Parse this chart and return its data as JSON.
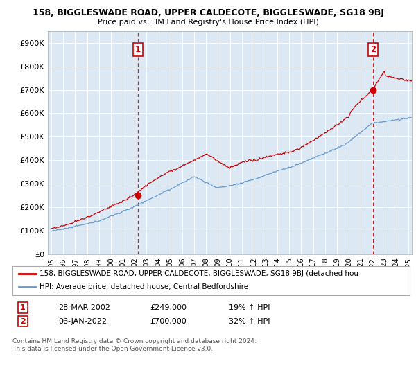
{
  "title": "158, BIGGLESWADE ROAD, UPPER CALDECOTE, BIGGLESWADE, SG18 9BJ",
  "subtitle": "Price paid vs. HM Land Registry's House Price Index (HPI)",
  "footer": "Contains HM Land Registry data © Crown copyright and database right 2024.\nThis data is licensed under the Open Government Licence v3.0.",
  "legend_line1": "158, BIGGLESWADE ROAD, UPPER CALDECOTE, BIGGLESWADE, SG18 9BJ (detached hou",
  "legend_line2": "HPI: Average price, detached house, Central Bedfordshire",
  "annotation1_date": "28-MAR-2002",
  "annotation1_price": "£249,000",
  "annotation1_hpi": "19% ↑ HPI",
  "annotation2_date": "06-JAN-2022",
  "annotation2_price": "£700,000",
  "annotation2_hpi": "32% ↑ HPI",
  "ylim": [
    0,
    950000
  ],
  "yticks": [
    0,
    100000,
    200000,
    300000,
    400000,
    500000,
    600000,
    700000,
    800000,
    900000
  ],
  "ytick_labels": [
    "£0",
    "£100K",
    "£200K",
    "£300K",
    "£400K",
    "£500K",
    "£600K",
    "£700K",
    "£800K",
    "£900K"
  ],
  "red_color": "#cc0000",
  "blue_color": "#6699cc",
  "plot_bg_color": "#dce9f5",
  "background_color": "#ffffff",
  "grid_color": "#ffffff",
  "annotation_box_edge_color": "#cc0000",
  "sale1_year": 2002.25,
  "sale1_value": 249000,
  "sale2_year": 2022.04,
  "sale2_value": 700000
}
